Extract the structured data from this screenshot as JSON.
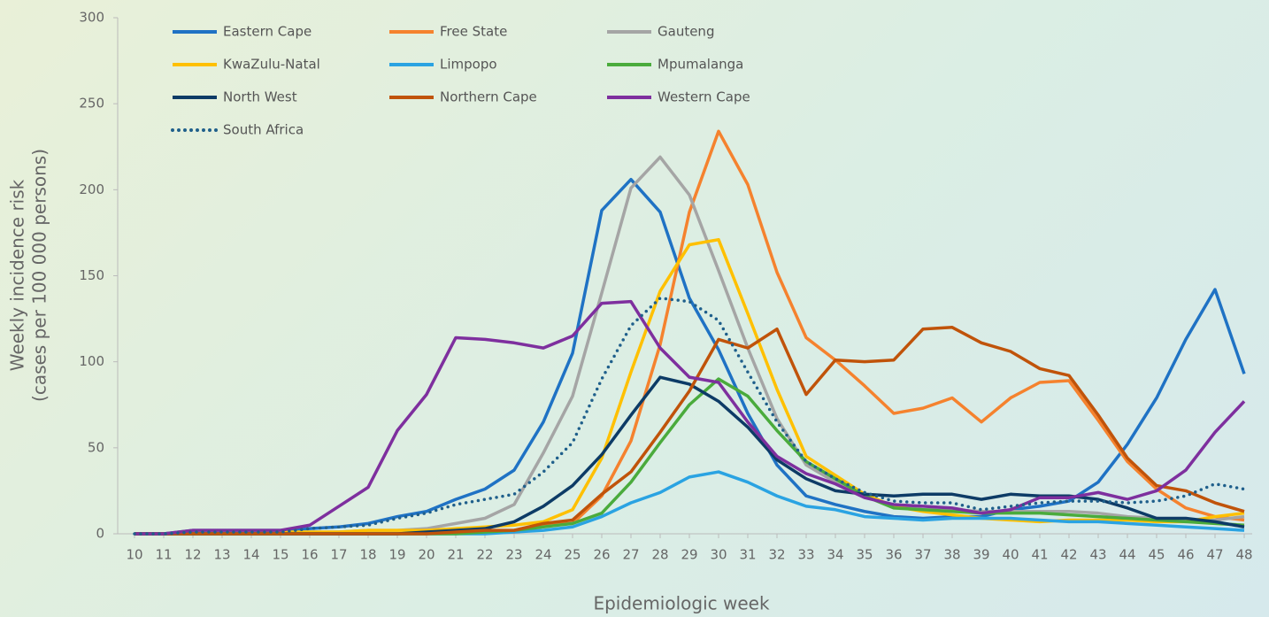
{
  "chart_data": {
    "type": "line",
    "y_label": [
      "Weekly incidence risk",
      "(cases per 100 000 persons)"
    ],
    "x_label": "Epidemiologic week",
    "x": [
      10,
      11,
      12,
      13,
      14,
      15,
      16,
      17,
      18,
      19,
      20,
      21,
      22,
      23,
      24,
      25,
      26,
      27,
      28,
      29,
      30,
      31,
      32,
      33,
      34,
      35,
      36,
      37,
      38,
      39,
      40,
      41,
      42,
      43,
      44,
      45,
      46,
      47,
      48
    ],
    "xlim": [
      10,
      48
    ],
    "xticks": [
      10,
      11,
      12,
      13,
      14,
      15,
      16,
      17,
      18,
      19,
      20,
      21,
      22,
      23,
      24,
      25,
      26,
      27,
      28,
      29,
      30,
      31,
      32,
      33,
      34,
      35,
      36,
      37,
      38,
      39,
      40,
      41,
      42,
      43,
      44,
      45,
      46,
      47,
      48
    ],
    "ylim": [
      0,
      300
    ],
    "yticks": [
      0,
      50,
      100,
      150,
      200,
      250,
      300
    ],
    "legend": "upper left",
    "series": [
      {
        "name": "Eastern Cape",
        "color": "#1f72c4",
        "style": "solid",
        "values": [
          0,
          0,
          2,
          2,
          2,
          2,
          3,
          4,
          6,
          10,
          13,
          20,
          26,
          37,
          65,
          105,
          188,
          206,
          187,
          137,
          107,
          70,
          40,
          22,
          17,
          13,
          10,
          9,
          10,
          10,
          14,
          16,
          19,
          30,
          52,
          79,
          113,
          142,
          93
        ]
      },
      {
        "name": "Free State",
        "color": "#f5822e",
        "style": "solid",
        "values": [
          0,
          0,
          0,
          0,
          0,
          0,
          0,
          0,
          0,
          0,
          0,
          1,
          1,
          1,
          5,
          6,
          22,
          54,
          110,
          187,
          234,
          203,
          152,
          114,
          101,
          86,
          70,
          73,
          79,
          65,
          79,
          88,
          89,
          66,
          42,
          26,
          15,
          10,
          8
        ]
      },
      {
        "name": "Gauteng",
        "color": "#a5a5a5",
        "style": "solid",
        "values": [
          0,
          0,
          1,
          1,
          1,
          1,
          1,
          1,
          2,
          2,
          3,
          6,
          9,
          17,
          47,
          80,
          140,
          201,
          219,
          197,
          153,
          108,
          67,
          40,
          30,
          22,
          16,
          14,
          14,
          13,
          13,
          13,
          13,
          12,
          10,
          9,
          8,
          8,
          10
        ]
      },
      {
        "name": "KwaZulu-Natal",
        "color": "#ffc000",
        "style": "solid",
        "values": [
          0,
          0,
          0,
          0,
          0,
          1,
          1,
          1,
          2,
          2,
          2,
          3,
          4,
          5,
          7,
          14,
          44,
          94,
          141,
          168,
          171,
          128,
          84,
          45,
          34,
          23,
          16,
          13,
          11,
          9,
          8,
          7,
          8,
          8,
          8,
          7,
          7,
          10,
          12
        ]
      },
      {
        "name": "Limpopo",
        "color": "#2aa3e2",
        "style": "solid",
        "values": [
          0,
          0,
          0,
          0,
          0,
          0,
          0,
          0,
          0,
          0,
          0,
          0,
          0,
          1,
          2,
          4,
          10,
          18,
          24,
          33,
          36,
          30,
          22,
          16,
          14,
          10,
          9,
          8,
          9,
          9,
          9,
          8,
          7,
          7,
          6,
          5,
          4,
          3,
          2
        ]
      },
      {
        "name": "Mpumalanga",
        "color": "#4aab3c",
        "style": "solid",
        "values": [
          0,
          0,
          0,
          0,
          0,
          0,
          0,
          0,
          0,
          0,
          0,
          0,
          1,
          2,
          4,
          6,
          12,
          30,
          53,
          75,
          90,
          80,
          60,
          42,
          32,
          22,
          15,
          14,
          13,
          12,
          12,
          12,
          11,
          10,
          9,
          8,
          7,
          6,
          5
        ]
      },
      {
        "name": "North West",
        "color": "#0d3b66",
        "style": "solid",
        "values": [
          0,
          0,
          0,
          0,
          0,
          0,
          0,
          0,
          0,
          0,
          1,
          2,
          3,
          7,
          16,
          28,
          46,
          69,
          91,
          87,
          77,
          62,
          43,
          32,
          25,
          23,
          22,
          23,
          23,
          20,
          23,
          22,
          22,
          20,
          15,
          9,
          9,
          7,
          4
        ]
      },
      {
        "name": "Northern Cape",
        "color": "#c0530a",
        "style": "solid",
        "values": [
          0,
          0,
          0,
          0,
          0,
          0,
          0,
          0,
          0,
          0,
          0,
          1,
          2,
          2,
          6,
          8,
          23,
          36,
          59,
          83,
          113,
          108,
          119,
          81,
          101,
          100,
          101,
          119,
          120,
          111,
          106,
          96,
          92,
          69,
          44,
          28,
          25,
          18,
          13
        ]
      },
      {
        "name": "Western Cape",
        "color": "#7e2f9e",
        "style": "solid",
        "values": [
          0,
          0,
          2,
          2,
          2,
          2,
          5,
          16,
          27,
          60,
          81,
          114,
          113,
          111,
          108,
          115,
          134,
          135,
          108,
          91,
          88,
          65,
          45,
          35,
          29,
          21,
          17,
          16,
          15,
          12,
          14,
          21,
          21,
          24,
          20,
          25,
          37,
          59,
          77
        ]
      },
      {
        "name": "South Africa",
        "color": "#1f5f8b",
        "style": "dotted",
        "values": [
          0,
          0,
          1,
          1,
          1,
          1,
          3,
          4,
          5,
          9,
          12,
          17,
          20,
          23,
          36,
          53,
          90,
          121,
          137,
          135,
          124,
          94,
          65,
          42,
          32,
          24,
          19,
          18,
          18,
          14,
          16,
          18,
          19,
          19,
          18,
          19,
          22,
          29,
          26
        ]
      }
    ]
  }
}
